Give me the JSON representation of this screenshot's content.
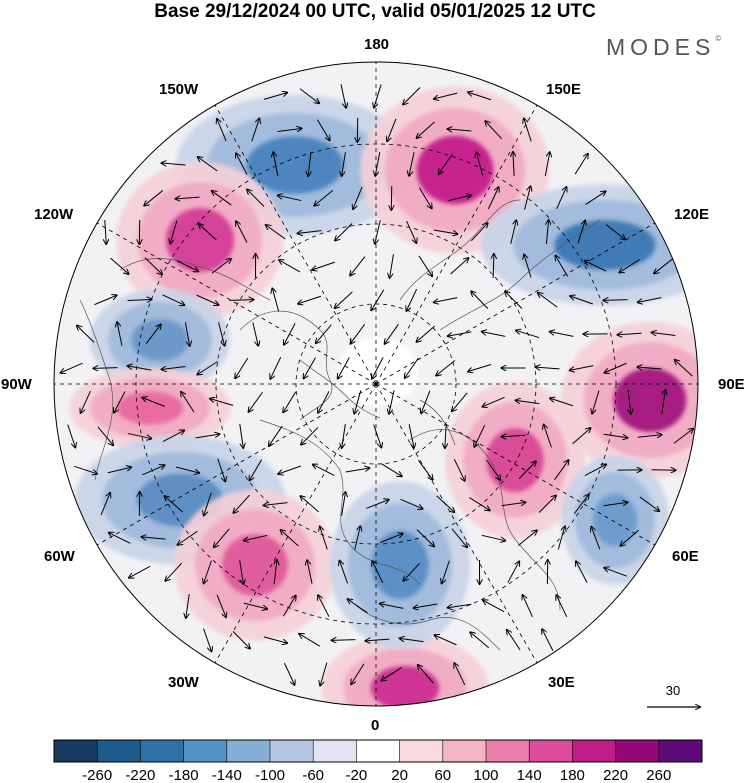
{
  "title": "Base 29/12/2024 00 UTC, valid 05/01/2025 12 UTC",
  "brand": "MODES",
  "brand_mark": "©",
  "longitude_labels": {
    "top": "180",
    "top_left": "150W",
    "top_right": "150E",
    "upper_left": "120W",
    "upper_right": "120E",
    "left": "90W",
    "right": "90E",
    "lower_left": "60W",
    "lower_right": "60E",
    "bottom_left": "30W",
    "bottom_right": "30E",
    "bottom": "0"
  },
  "vector_reference": {
    "value": "30"
  },
  "colorbar": {
    "ticks": [
      "-260",
      "-220",
      "-180",
      "-140",
      "-100",
      "-60",
      "-20",
      "20",
      "60",
      "100",
      "140",
      "180",
      "220",
      "260"
    ],
    "colors": [
      "#173a5e",
      "#1f5a8c",
      "#2f72aa",
      "#5592c4",
      "#86afd6",
      "#b7c6e3",
      "#e4e4f1",
      "#ffffff",
      "#f8d9dd",
      "#f3b5c3",
      "#eb7fab",
      "#de4c9c",
      "#c01c87",
      "#930779",
      "#5e0a78"
    ]
  },
  "anomaly_centers": [
    {
      "sign": "negative",
      "strength": "strong",
      "color": "#4a83bd"
    },
    {
      "sign": "positive",
      "strength": "strong",
      "color": "#c51c8c"
    },
    {
      "sign": "positive",
      "strength": "strong",
      "color": "#d43e98"
    },
    {
      "sign": "negative",
      "strength": "strong",
      "color": "#3b78b3"
    },
    {
      "sign": "negative",
      "strength": "moderate",
      "color": "#6a97c9"
    },
    {
      "sign": "positive",
      "strength": "strong",
      "color": "#a3127f"
    },
    {
      "sign": "positive",
      "strength": "moderate",
      "color": "#e9699f"
    },
    {
      "sign": "negative",
      "strength": "moderate",
      "color": "#5b8dc2"
    },
    {
      "sign": "positive",
      "strength": "moderate",
      "color": "#e05a9c"
    },
    {
      "sign": "positive",
      "strength": "moderate",
      "color": "#d94696"
    },
    {
      "sign": "negative",
      "strength": "moderate",
      "color": "#6c9ccd"
    },
    {
      "sign": "positive",
      "strength": "strong",
      "color": "#cc2e91"
    },
    {
      "sign": "negative",
      "strength": "moderate",
      "color": "#5a8ec5"
    }
  ]
}
